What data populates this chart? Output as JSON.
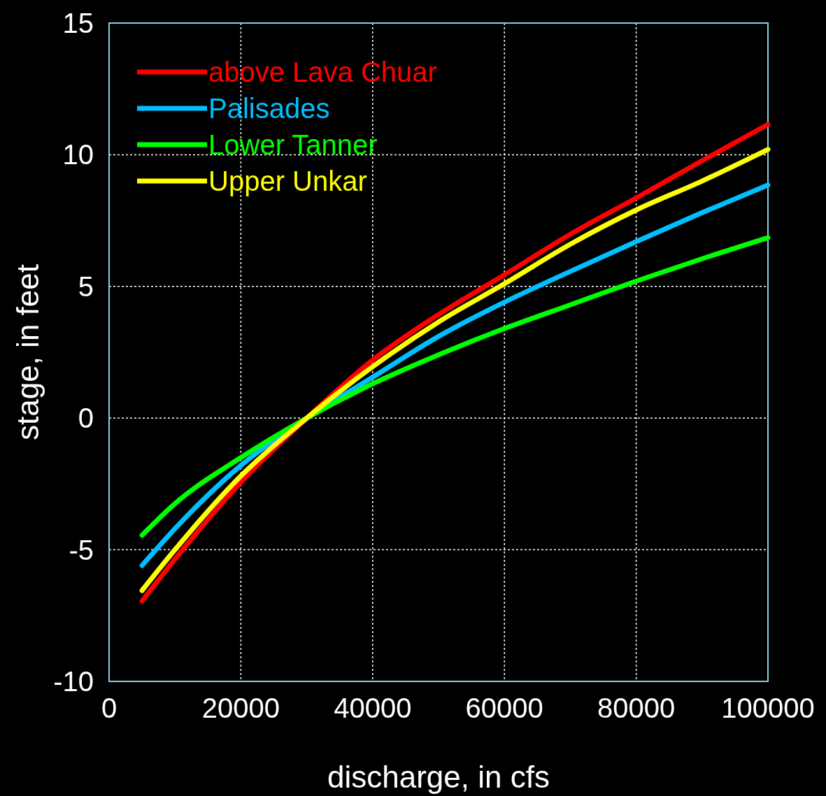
{
  "chart_data": {
    "type": "line",
    "xlabel": "discharge, in cfs",
    "ylabel": "stage, in feet",
    "x": [
      5000,
      10000,
      20000,
      30000,
      40000,
      50000,
      60000,
      70000,
      80000,
      90000,
      100000
    ],
    "series": [
      {
        "name": "above Lava Chuar",
        "color": "#ff0000",
        "values": [
          -6.95,
          -5.36,
          -2.44,
          0,
          2.2,
          3.93,
          5.44,
          6.98,
          8.36,
          9.77,
          11.15
        ]
      },
      {
        "name": "Palisades",
        "color": "#00bfff",
        "values": [
          -5.6,
          -4.2,
          -1.8,
          0,
          1.55,
          3.1,
          4.4,
          5.57,
          6.7,
          7.8,
          8.85
        ]
      },
      {
        "name": "Lower Tanner",
        "color": "#00ff00",
        "values": [
          -4.45,
          -3.25,
          -1.5,
          0,
          1.3,
          2.4,
          3.4,
          4.3,
          5.2,
          6.05,
          6.85
        ]
      },
      {
        "name": "Upper Unkar",
        "color": "#ffff00",
        "values": [
          -6.55,
          -5.0,
          -2.2,
          0,
          1.95,
          3.65,
          5.1,
          6.6,
          7.9,
          9.0,
          10.2
        ]
      }
    ],
    "xlim": [
      0,
      100000
    ],
    "xticks": [
      0,
      20000,
      40000,
      60000,
      80000,
      100000
    ],
    "ylim": [
      -10,
      15
    ],
    "yticks": [
      -10,
      -5,
      0,
      5,
      10,
      15
    ],
    "grid": true,
    "legend": "top left",
    "line_style": "solid"
  }
}
